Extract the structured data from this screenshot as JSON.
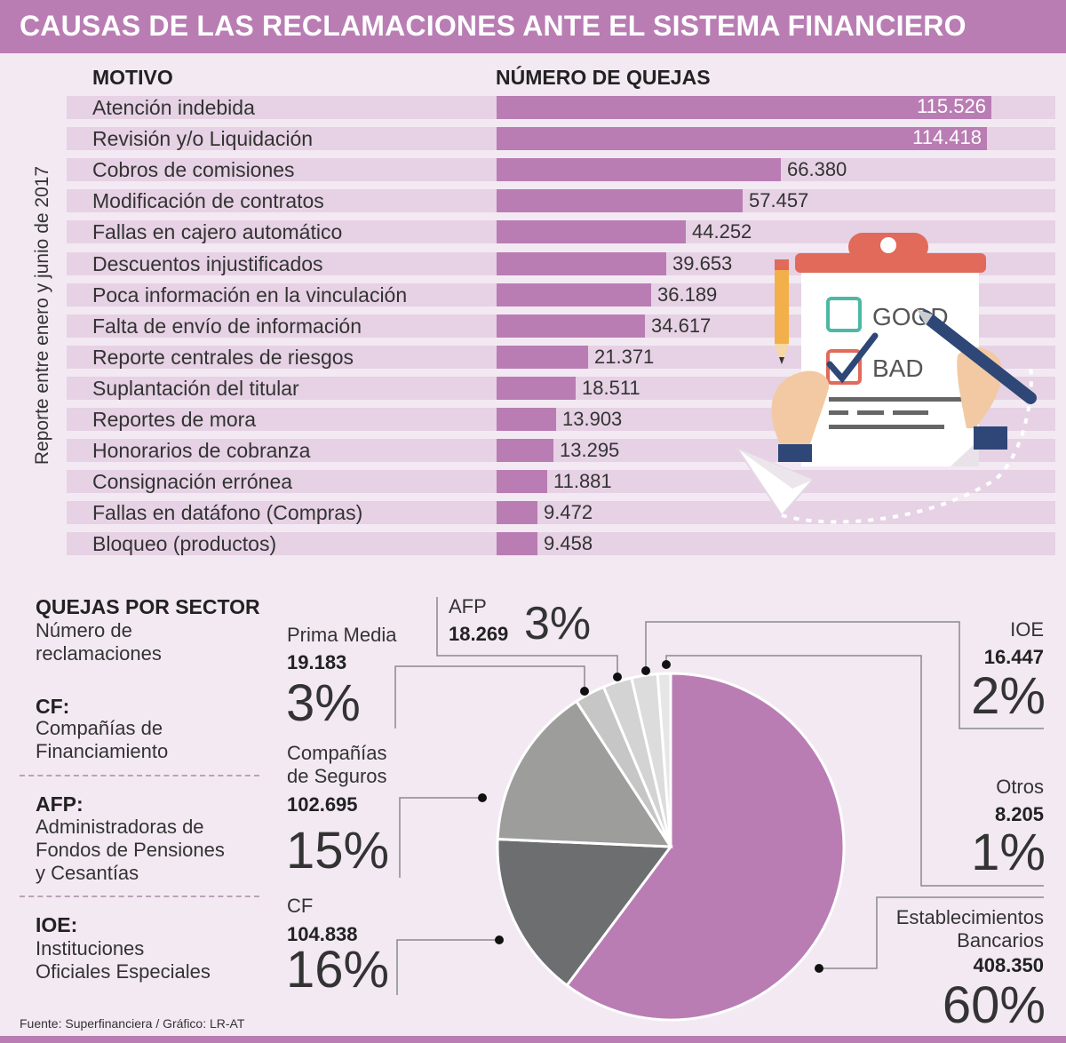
{
  "title": "CAUSAS DE LAS RECLAMACIONES ANTE EL SISTEMA FINANCIERO",
  "vertical_note": "Reporte entre enero y junio de 2017",
  "illustration": {
    "good_label": "GOOD",
    "bad_label": "BAD",
    "icons": [
      "clipboard-icon",
      "pencil-icon",
      "fountain-pen-icon",
      "paper-plane-icon"
    ]
  },
  "sector": {
    "title": "QUEJAS POR SECTOR",
    "subtitle_1": "Número de",
    "subtitle_2": "reclamaciones",
    "defs": [
      {
        "abbr": "CF:",
        "lines": [
          "Compañías de",
          "Financiamiento"
        ]
      },
      {
        "abbr": "AFP:",
        "lines": [
          "Administradoras de",
          "Fondos de Pensiones",
          "y Cesantías"
        ]
      },
      {
        "abbr": "IOE:",
        "lines": [
          "Instituciones",
          "Oficiales Especiales"
        ]
      }
    ]
  },
  "source": "Fuente: Superfinanciera / Gráfico: LR-AT",
  "colors": {
    "brand": "#b97db4",
    "row_bg": "#e6d2e4",
    "page_bg": "#f3e9f3",
    "slice_banks": "#b97db4",
    "slice_cf": "#6c6e6f",
    "slice_insurance": "#9d9d9c",
    "slice_prima": "#c6c6c6",
    "slice_afp": "#d3d3d3",
    "slice_ioe": "#dcdcdc",
    "slice_otros": "#e6e6e6"
  },
  "chart_data": [
    {
      "type": "bar",
      "orientation": "horizontal",
      "title": "CAUSAS DE LAS RECLAMACIONES ANTE EL SISTEMA FINANCIERO",
      "xlabel": "NÚMERO DE QUEJAS",
      "ylabel": "MOTIVO",
      "xlim": [
        0,
        115526
      ],
      "categories": [
        "Atención indebida",
        "Revisión y/o Liquidación",
        "Cobros de comisiones",
        "Modificación de contratos",
        "Fallas en cajero automático",
        "Descuentos injustificados",
        "Poca información en la vinculación",
        "Falta de envío de información",
        "Reporte centrales de riesgos",
        "Suplantación del titular",
        "Reportes de mora",
        "Honorarios de cobranza",
        "Consignación errónea",
        "Fallas en datáfono (Compras)",
        "Bloqueo (productos)"
      ],
      "values": [
        115526,
        114418,
        66380,
        57457,
        44252,
        39653,
        36189,
        34617,
        21371,
        18511,
        13903,
        13295,
        11881,
        9472,
        9458
      ],
      "value_labels": [
        "115.526",
        "114.418",
        "66.380",
        "57.457",
        "44.252",
        "39.653",
        "36.189",
        "34.617",
        "21.371",
        "18.511",
        "13.903",
        "13.295",
        "11.881",
        "9.472",
        "9.458"
      ]
    },
    {
      "type": "pie",
      "title": "QUEJAS POR SECTOR",
      "subtitle": "Número de reclamaciones",
      "slices": [
        {
          "key": "banks",
          "name_lines": [
            "Establecimientos",
            "Bancarios"
          ],
          "value": 408350,
          "value_label": "408.350",
          "pct_label": "60%"
        },
        {
          "key": "cf",
          "name_lines": [
            "CF"
          ],
          "value": 104838,
          "value_label": "104.838",
          "pct_label": "16%"
        },
        {
          "key": "insurance",
          "name_lines": [
            "Compañías",
            "de Seguros"
          ],
          "value": 102695,
          "value_label": "102.695",
          "pct_label": "15%"
        },
        {
          "key": "prima",
          "name_lines": [
            "Prima Media"
          ],
          "value": 19183,
          "value_label": "19.183",
          "pct_label": "3%"
        },
        {
          "key": "afp",
          "name_lines": [
            "AFP"
          ],
          "value": 18269,
          "value_label": "18.269",
          "pct_label": "3%"
        },
        {
          "key": "ioe",
          "name_lines": [
            "IOE"
          ],
          "value": 16447,
          "value_label": "16.447",
          "pct_label": "2%"
        },
        {
          "key": "otros",
          "name_lines": [
            "Otros"
          ],
          "value": 8205,
          "value_label": "8.205",
          "pct_label": "1%"
        }
      ]
    }
  ]
}
